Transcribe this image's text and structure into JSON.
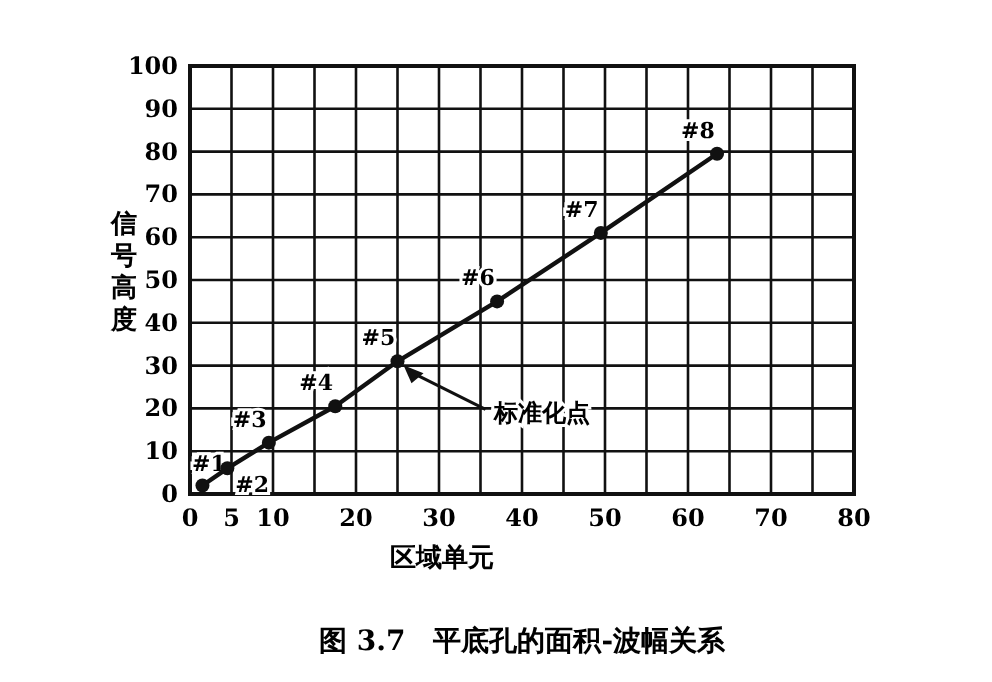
{
  "chart_data": {
    "type": "line",
    "title": "图 3.7　平底孔的面积-波幅关系",
    "xlabel": "区域单元",
    "ylabel": "信号高度",
    "x": [
      1.5,
      4.5,
      9.5,
      17.5,
      25,
      37,
      49.5,
      63.5
    ],
    "series": [
      {
        "color": "#111111",
        "values": [
          2,
          6,
          12,
          20.5,
          31,
          45,
          61,
          79.5
        ]
      }
    ],
    "marker": "circle",
    "line_style": "solid",
    "xlim": [
      0,
      80
    ],
    "ylim": [
      0,
      100
    ],
    "xticks": [
      0,
      5,
      10,
      {
        "value": 15,
        "label": null
      },
      20,
      {
        "value": 25,
        "label": null
      },
      30,
      {
        "value": 35,
        "label": null
      },
      40,
      {
        "value": 45,
        "label": null
      },
      50,
      {
        "value": 55,
        "label": null
      },
      60,
      {
        "value": 65,
        "label": null
      },
      70,
      {
        "value": 75,
        "label": null
      },
      80
    ],
    "yticks": [
      0,
      10,
      20,
      30,
      40,
      50,
      60,
      70,
      80,
      90,
      100
    ],
    "grid": true,
    "annotations": [
      {
        "text": "#1",
        "x": 1.5,
        "y": 2
      },
      {
        "text": "#2",
        "x": 4.5,
        "y": 6
      },
      {
        "text": "#3",
        "x": 9.5,
        "y": 12
      },
      {
        "text": "#4",
        "x": 17.5,
        "y": 20.5
      },
      {
        "text": "#5",
        "x": 25,
        "y": 31
      },
      {
        "text": "#6",
        "x": 37,
        "y": 45
      },
      {
        "text": "#7",
        "x": 49.5,
        "y": 61
      },
      {
        "text": "#8",
        "x": 63.5,
        "y": 79.5
      },
      "标准化点"
    ]
  }
}
